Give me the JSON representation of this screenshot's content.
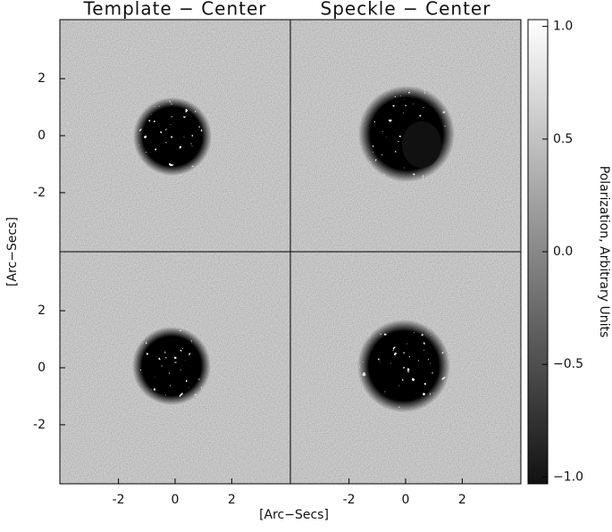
{
  "chart_data": [
    {
      "type": "image",
      "title": "Template − Center",
      "xlim": [
        -4.07,
        4.07
      ],
      "ylim": [
        -4.07,
        4.07
      ],
      "yticks": [
        -2,
        0,
        2
      ]
    },
    {
      "type": "image",
      "title": "Speckle − Center",
      "xlim": [
        -4.07,
        4.07
      ],
      "ylim": [
        -4.07,
        4.07
      ]
    },
    {
      "type": "image",
      "xlim": [
        -4.07,
        4.07
      ],
      "ylim": [
        -4.07,
        4.07
      ],
      "xticks": [
        -2,
        0,
        2
      ],
      "yticks": [
        -2,
        0,
        2
      ]
    },
    {
      "type": "image",
      "xlim": [
        -4.07,
        4.07
      ],
      "ylim": [
        -4.07,
        4.07
      ],
      "xticks": [
        -2,
        0,
        2
      ]
    },
    {
      "type": "colorbar",
      "label": "Polarization, Arbitrary Units",
      "clim": [
        -1.03,
        1.03
      ],
      "cticks": [
        {
          "value": 1,
          "label": "1.0"
        },
        {
          "value": 0.5,
          "label": "0.5"
        },
        {
          "value": 0,
          "label": "0.0"
        },
        {
          "value": -0.5,
          "label": "−0.5"
        },
        {
          "value": -1,
          "label": "−1.0"
        }
      ]
    }
  ],
  "axis_labels": {
    "x": "[Arc−Secs]",
    "y": "[Arc−Secs]"
  }
}
